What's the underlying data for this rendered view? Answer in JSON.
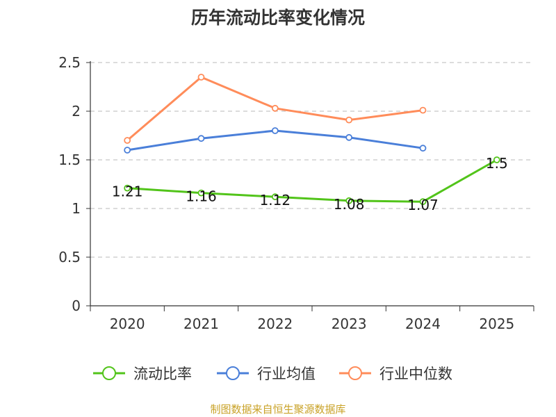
{
  "chart_data": {
    "type": "line",
    "title": "历年流动比率变化情况",
    "categories": [
      "2020",
      "2021",
      "2022",
      "2023",
      "2024",
      "2025"
    ],
    "ylim": [
      0,
      2.5
    ],
    "yticks": [
      "0",
      "0.5",
      "1",
      "1.5",
      "2",
      "2.5"
    ],
    "ytick_values": [
      0,
      0.5,
      1,
      1.5,
      2,
      2.5
    ],
    "grid": true,
    "legend_position": "bottom",
    "series": [
      {
        "name": "流动比率",
        "color": "#52c41a",
        "values": [
          1.21,
          1.16,
          1.12,
          1.08,
          1.07,
          1.5
        ],
        "labels": [
          "1.21",
          "1.16",
          "1.12",
          "1.08",
          "1.07",
          "1.5"
        ]
      },
      {
        "name": "行业均值",
        "color": "#4a7fd9",
        "values": [
          1.6,
          1.72,
          1.8,
          1.73,
          1.62,
          null
        ]
      },
      {
        "name": "行业中位数",
        "color": "#ff8c5a",
        "values": [
          1.7,
          2.35,
          2.03,
          1.91,
          2.01,
          null
        ]
      }
    ]
  },
  "source": "制图数据来自恒生聚源数据库"
}
